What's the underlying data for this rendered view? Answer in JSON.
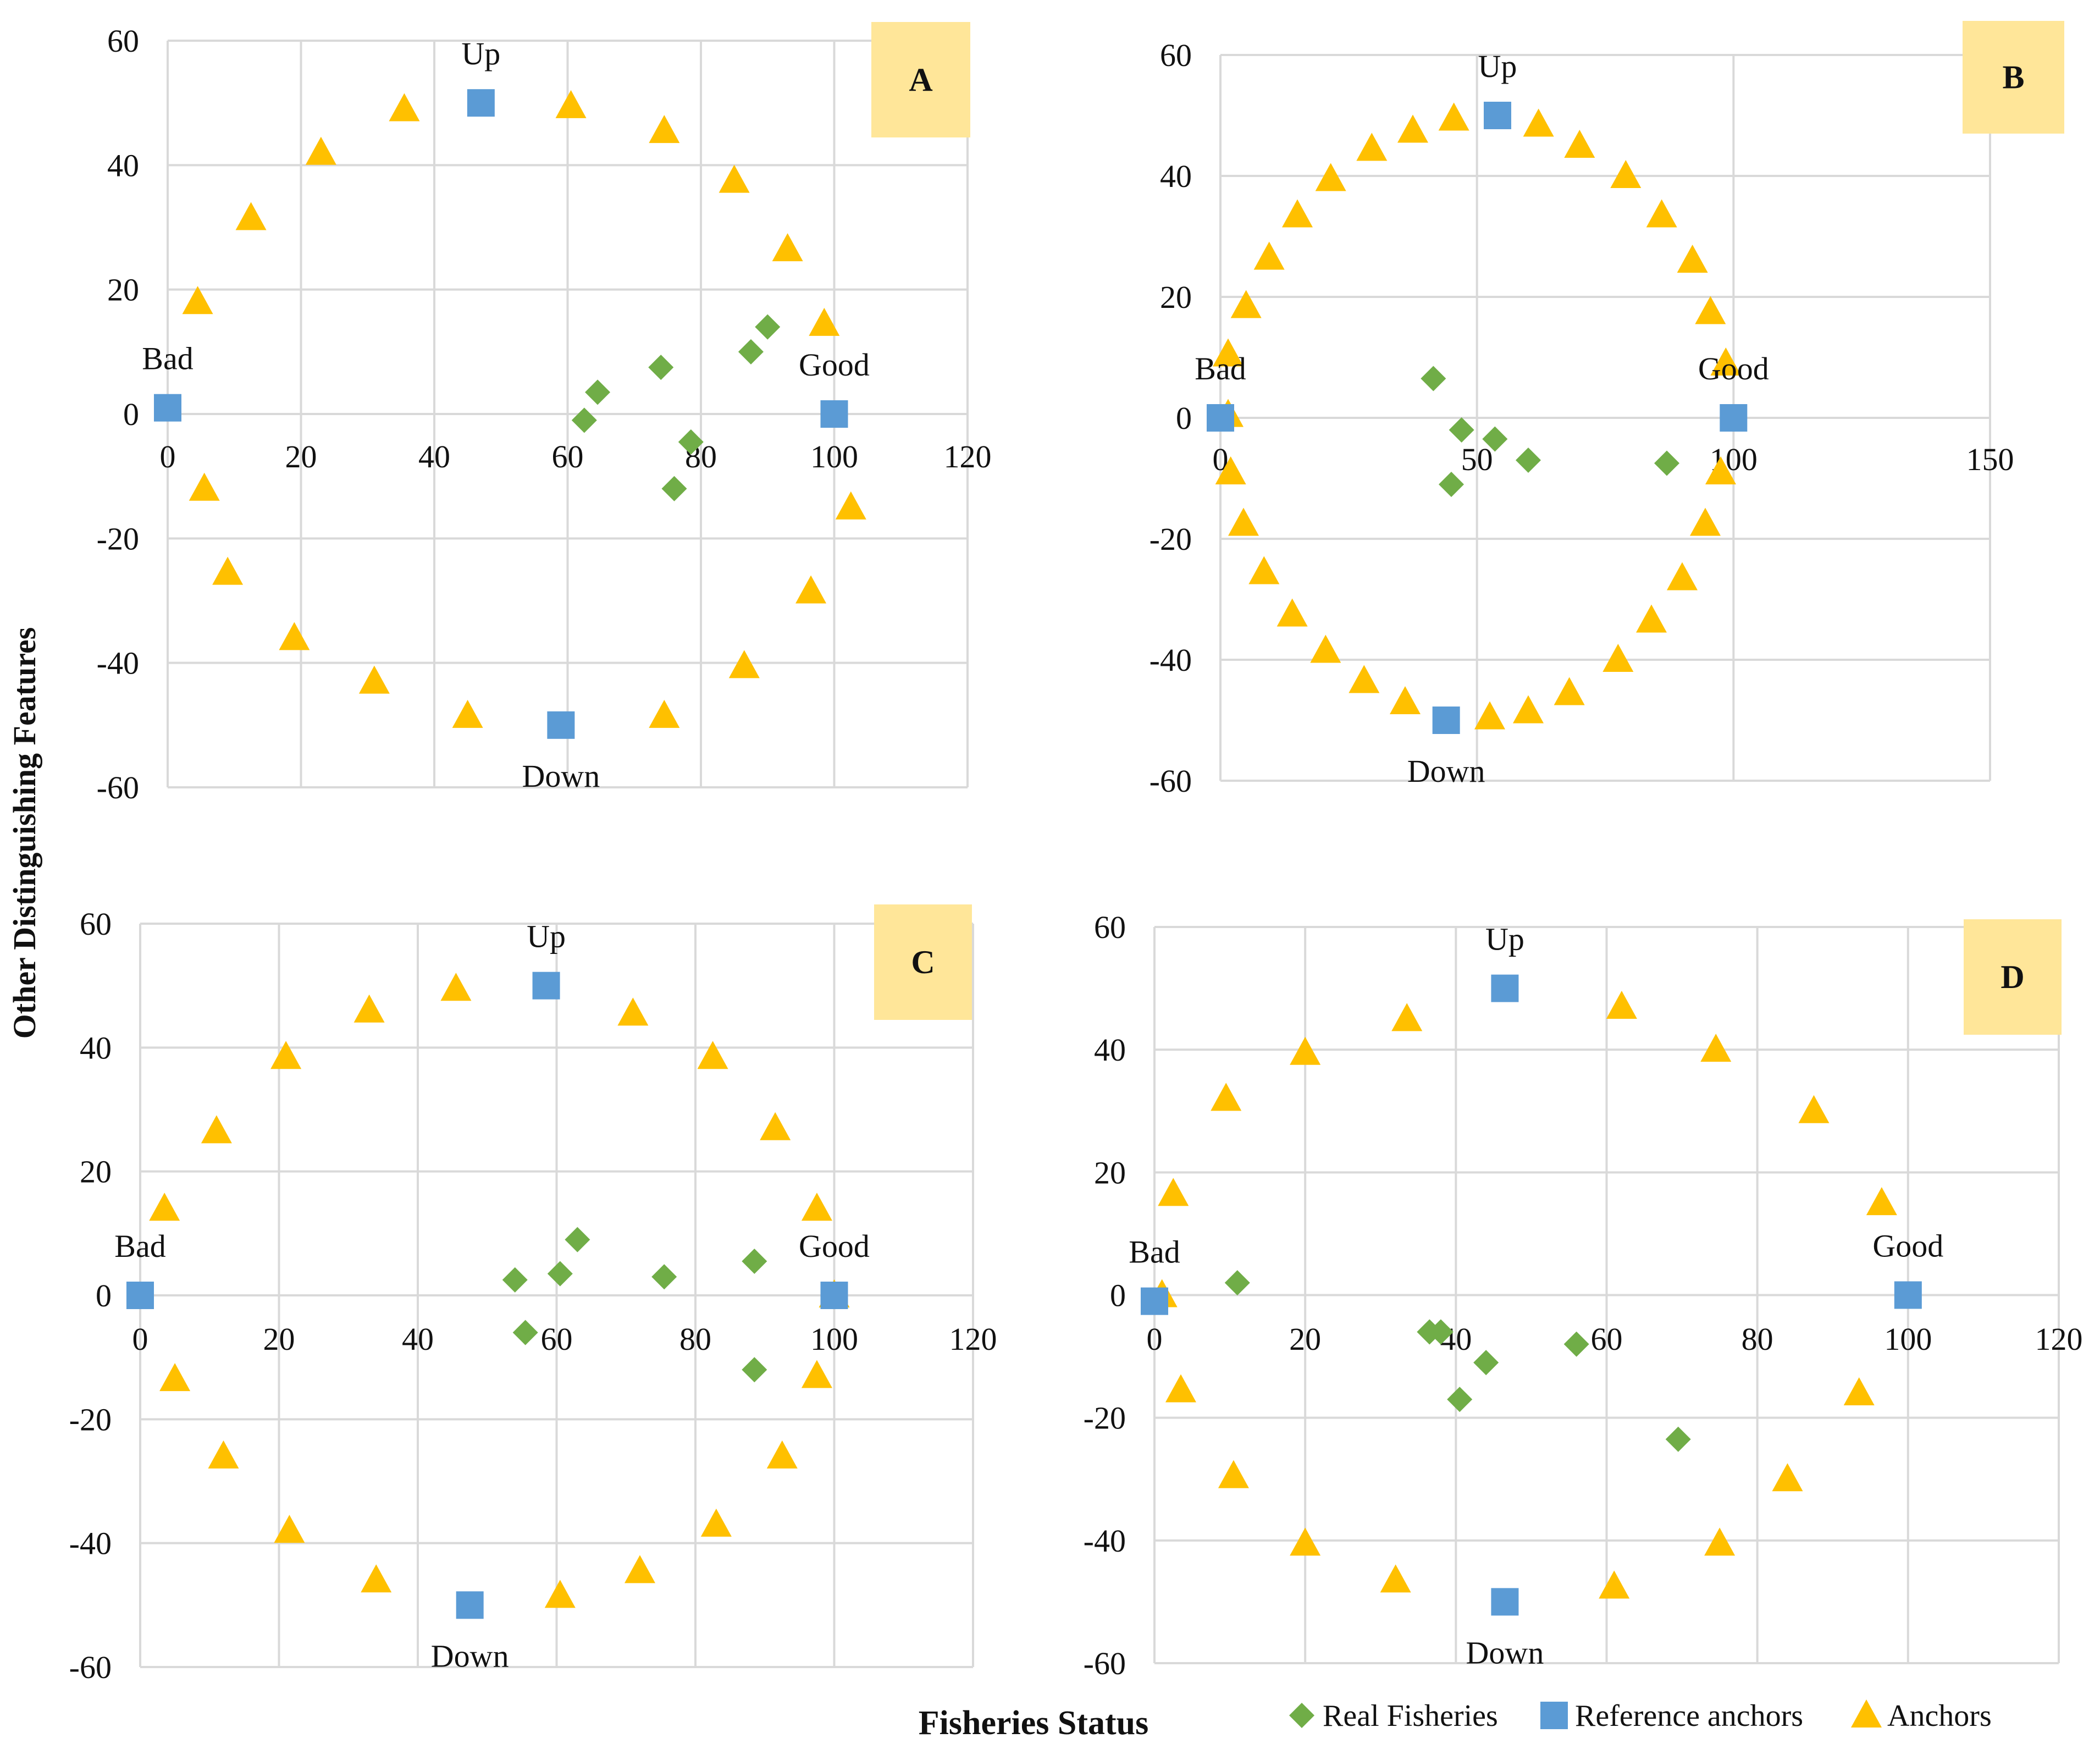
{
  "x_axis_title": "Fisheries Status",
  "y_axis_title": "Other Distinguishing Features",
  "legend": [
    {
      "key": "real",
      "label": "Real Fisheries",
      "shape": "diamond",
      "color": "#70ad47"
    },
    {
      "key": "ref",
      "label": "Reference anchors",
      "shape": "square",
      "color": "#5b9bd5"
    },
    {
      "key": "anchor",
      "label": "Anchors",
      "shape": "triangle",
      "color": "#ffc000"
    }
  ],
  "panel_tag_color": "#ffe699",
  "chart_data": [
    {
      "type": "scatter",
      "panel": "A",
      "xlim": [
        0,
        120
      ],
      "xticks": [
        0,
        20,
        40,
        60,
        80,
        100,
        120
      ],
      "ylim": [
        -60,
        60
      ],
      "yticks": [
        -60,
        -40,
        -20,
        0,
        20,
        40,
        60
      ],
      "reference_labels": [
        {
          "text": "Up",
          "x": 47,
          "y": 50,
          "pos": "above"
        },
        {
          "text": "Down",
          "x": 59,
          "y": -50,
          "pos": "below"
        },
        {
          "text": "Bad",
          "x": 0,
          "y": 1,
          "pos": "above"
        },
        {
          "text": "Good",
          "x": 100,
          "y": 0,
          "pos": "above"
        }
      ],
      "reference_anchors": [
        [
          0,
          1
        ],
        [
          47,
          50
        ],
        [
          59,
          -50
        ],
        [
          100,
          0
        ]
      ],
      "anchors": [
        [
          4.5,
          18
        ],
        [
          12.5,
          31.5
        ],
        [
          23,
          42
        ],
        [
          35.5,
          49
        ],
        [
          60.5,
          49.5
        ],
        [
          74.5,
          45.5
        ],
        [
          85,
          37.5
        ],
        [
          93,
          26.5
        ],
        [
          98.5,
          14.5
        ],
        [
          5.5,
          -12
        ],
        [
          9,
          -25.5
        ],
        [
          19,
          -36
        ],
        [
          31,
          -43
        ],
        [
          45,
          -48.5
        ],
        [
          74.5,
          -48.5
        ],
        [
          86.5,
          -40.5
        ],
        [
          96.5,
          -28.5
        ],
        [
          102.5,
          -15
        ]
      ],
      "real_fisheries": [
        [
          62.5,
          -1
        ],
        [
          64.5,
          3.5
        ],
        [
          74,
          7.5
        ],
        [
          76,
          -12
        ],
        [
          78.5,
          -4.5
        ],
        [
          87.5,
          10
        ],
        [
          90,
          14
        ]
      ]
    },
    {
      "type": "scatter",
      "panel": "B",
      "xlim": [
        0,
        150
      ],
      "xticks": [
        0,
        50,
        100,
        150
      ],
      "ylim": [
        -60,
        60
      ],
      "yticks": [
        -60,
        -40,
        -20,
        0,
        20,
        40,
        60
      ],
      "reference_labels": [
        {
          "text": "Up",
          "x": 54,
          "y": 50,
          "pos": "above"
        },
        {
          "text": "Down",
          "x": 44,
          "y": -50,
          "pos": "below"
        },
        {
          "text": "Bad",
          "x": 0,
          "y": 0,
          "pos": "above"
        },
        {
          "text": "Good",
          "x": 100,
          "y": 0,
          "pos": "above"
        }
      ],
      "reference_anchors": [
        [
          0,
          0
        ],
        [
          54,
          50
        ],
        [
          44,
          -50
        ],
        [
          100,
          0
        ]
      ],
      "anchors": [
        [
          1.5,
          10.5
        ],
        [
          5,
          18.5
        ],
        [
          9.5,
          26.5
        ],
        [
          15,
          33.5
        ],
        [
          21.5,
          39.5
        ],
        [
          29.5,
          44.5
        ],
        [
          37.5,
          47.5
        ],
        [
          45.5,
          49.5
        ],
        [
          62,
          48.5
        ],
        [
          70,
          45
        ],
        [
          79,
          40
        ],
        [
          86,
          33.5
        ],
        [
          92,
          26
        ],
        [
          95.5,
          17.5
        ],
        [
          98.5,
          9
        ],
        [
          1.5,
          0.5
        ],
        [
          2,
          -9
        ],
        [
          4.5,
          -17.5
        ],
        [
          8.5,
          -25.5
        ],
        [
          14,
          -32.5
        ],
        [
          20.5,
          -38.5
        ],
        [
          28,
          -43.5
        ],
        [
          36,
          -47
        ],
        [
          52.5,
          -49.5
        ],
        [
          60,
          -48.5
        ],
        [
          68,
          -45.5
        ],
        [
          77.5,
          -40
        ],
        [
          84,
          -33.5
        ],
        [
          90,
          -26.5
        ],
        [
          94.5,
          -17.5
        ],
        [
          97.5,
          -9
        ]
      ],
      "real_fisheries": [
        [
          41.5,
          6.5
        ],
        [
          47,
          -2
        ],
        [
          45,
          -11
        ],
        [
          53.5,
          -3.5
        ],
        [
          60,
          -7
        ],
        [
          87,
          -7.5
        ]
      ]
    },
    {
      "type": "scatter",
      "panel": "C",
      "xlim": [
        0,
        120
      ],
      "xticks": [
        0,
        20,
        40,
        60,
        80,
        100,
        120
      ],
      "ylim": [
        -60,
        60
      ],
      "yticks": [
        -60,
        -40,
        -20,
        0,
        20,
        40,
        60
      ],
      "reference_labels": [
        {
          "text": "Up",
          "x": 58.5,
          "y": 50,
          "pos": "above"
        },
        {
          "text": "Down",
          "x": 47.5,
          "y": -50,
          "pos": "below"
        },
        {
          "text": "Bad",
          "x": 0,
          "y": 0,
          "pos": "above"
        },
        {
          "text": "Good",
          "x": 100,
          "y": 0,
          "pos": "above"
        }
      ],
      "reference_anchors": [
        [
          0,
          0
        ],
        [
          58.5,
          50
        ],
        [
          47.5,
          -50
        ],
        [
          100,
          0
        ]
      ],
      "anchors": [
        [
          3.5,
          14
        ],
        [
          11,
          26.5
        ],
        [
          21,
          38.5
        ],
        [
          33,
          46
        ],
        [
          45.5,
          49.5
        ],
        [
          71,
          45.5
        ],
        [
          82.5,
          38.5
        ],
        [
          91.5,
          27
        ],
        [
          97.5,
          14
        ],
        [
          100,
          0
        ],
        [
          5,
          -13.5
        ],
        [
          12,
          -26
        ],
        [
          21.5,
          -38
        ],
        [
          34,
          -46
        ],
        [
          60.5,
          -48.5
        ],
        [
          72,
          -44.5
        ],
        [
          83,
          -37
        ],
        [
          92.5,
          -26
        ],
        [
          97.5,
          -13
        ]
      ],
      "real_fisheries": [
        [
          54,
          2.5
        ],
        [
          55.5,
          -6
        ],
        [
          60.5,
          3.5
        ],
        [
          63,
          9
        ],
        [
          75.5,
          3
        ],
        [
          88.5,
          5.5
        ],
        [
          88.5,
          -12
        ]
      ]
    },
    {
      "type": "scatter",
      "panel": "D",
      "xlim": [
        0,
        120
      ],
      "xticks": [
        0,
        20,
        40,
        60,
        80,
        100,
        120
      ],
      "ylim": [
        -60,
        60
      ],
      "yticks": [
        -60,
        -40,
        -20,
        0,
        20,
        40,
        60
      ],
      "reference_labels": [
        {
          "text": "Up",
          "x": 46.5,
          "y": 50,
          "pos": "above"
        },
        {
          "text": "Down",
          "x": 46.5,
          "y": -50,
          "pos": "below"
        },
        {
          "text": "Bad",
          "x": 0,
          "y": -1,
          "pos": "above"
        },
        {
          "text": "Good",
          "x": 100,
          "y": 0,
          "pos": "above"
        }
      ],
      "reference_anchors": [
        [
          0,
          -1
        ],
        [
          46.5,
          50
        ],
        [
          46.5,
          -50
        ],
        [
          100,
          0
        ]
      ],
      "anchors": [
        [
          1,
          0
        ],
        [
          2.5,
          16.5
        ],
        [
          9.5,
          32
        ],
        [
          20,
          39.5
        ],
        [
          33.5,
          45
        ],
        [
          62,
          47
        ],
        [
          74.5,
          40
        ],
        [
          87.5,
          30
        ],
        [
          96.5,
          15
        ],
        [
          3.5,
          -15.5
        ],
        [
          10.5,
          -29.5
        ],
        [
          20,
          -40.5
        ],
        [
          32,
          -46.5
        ],
        [
          61,
          -47.5
        ],
        [
          75,
          -40.5
        ],
        [
          84,
          -30
        ],
        [
          93.5,
          -16
        ]
      ],
      "real_fisheries": [
        [
          11,
          2
        ],
        [
          36.5,
          -6
        ],
        [
          38,
          -6
        ],
        [
          40.5,
          -17
        ],
        [
          44,
          -11
        ],
        [
          56,
          -8
        ],
        [
          69.5,
          -23.5
        ]
      ]
    }
  ]
}
